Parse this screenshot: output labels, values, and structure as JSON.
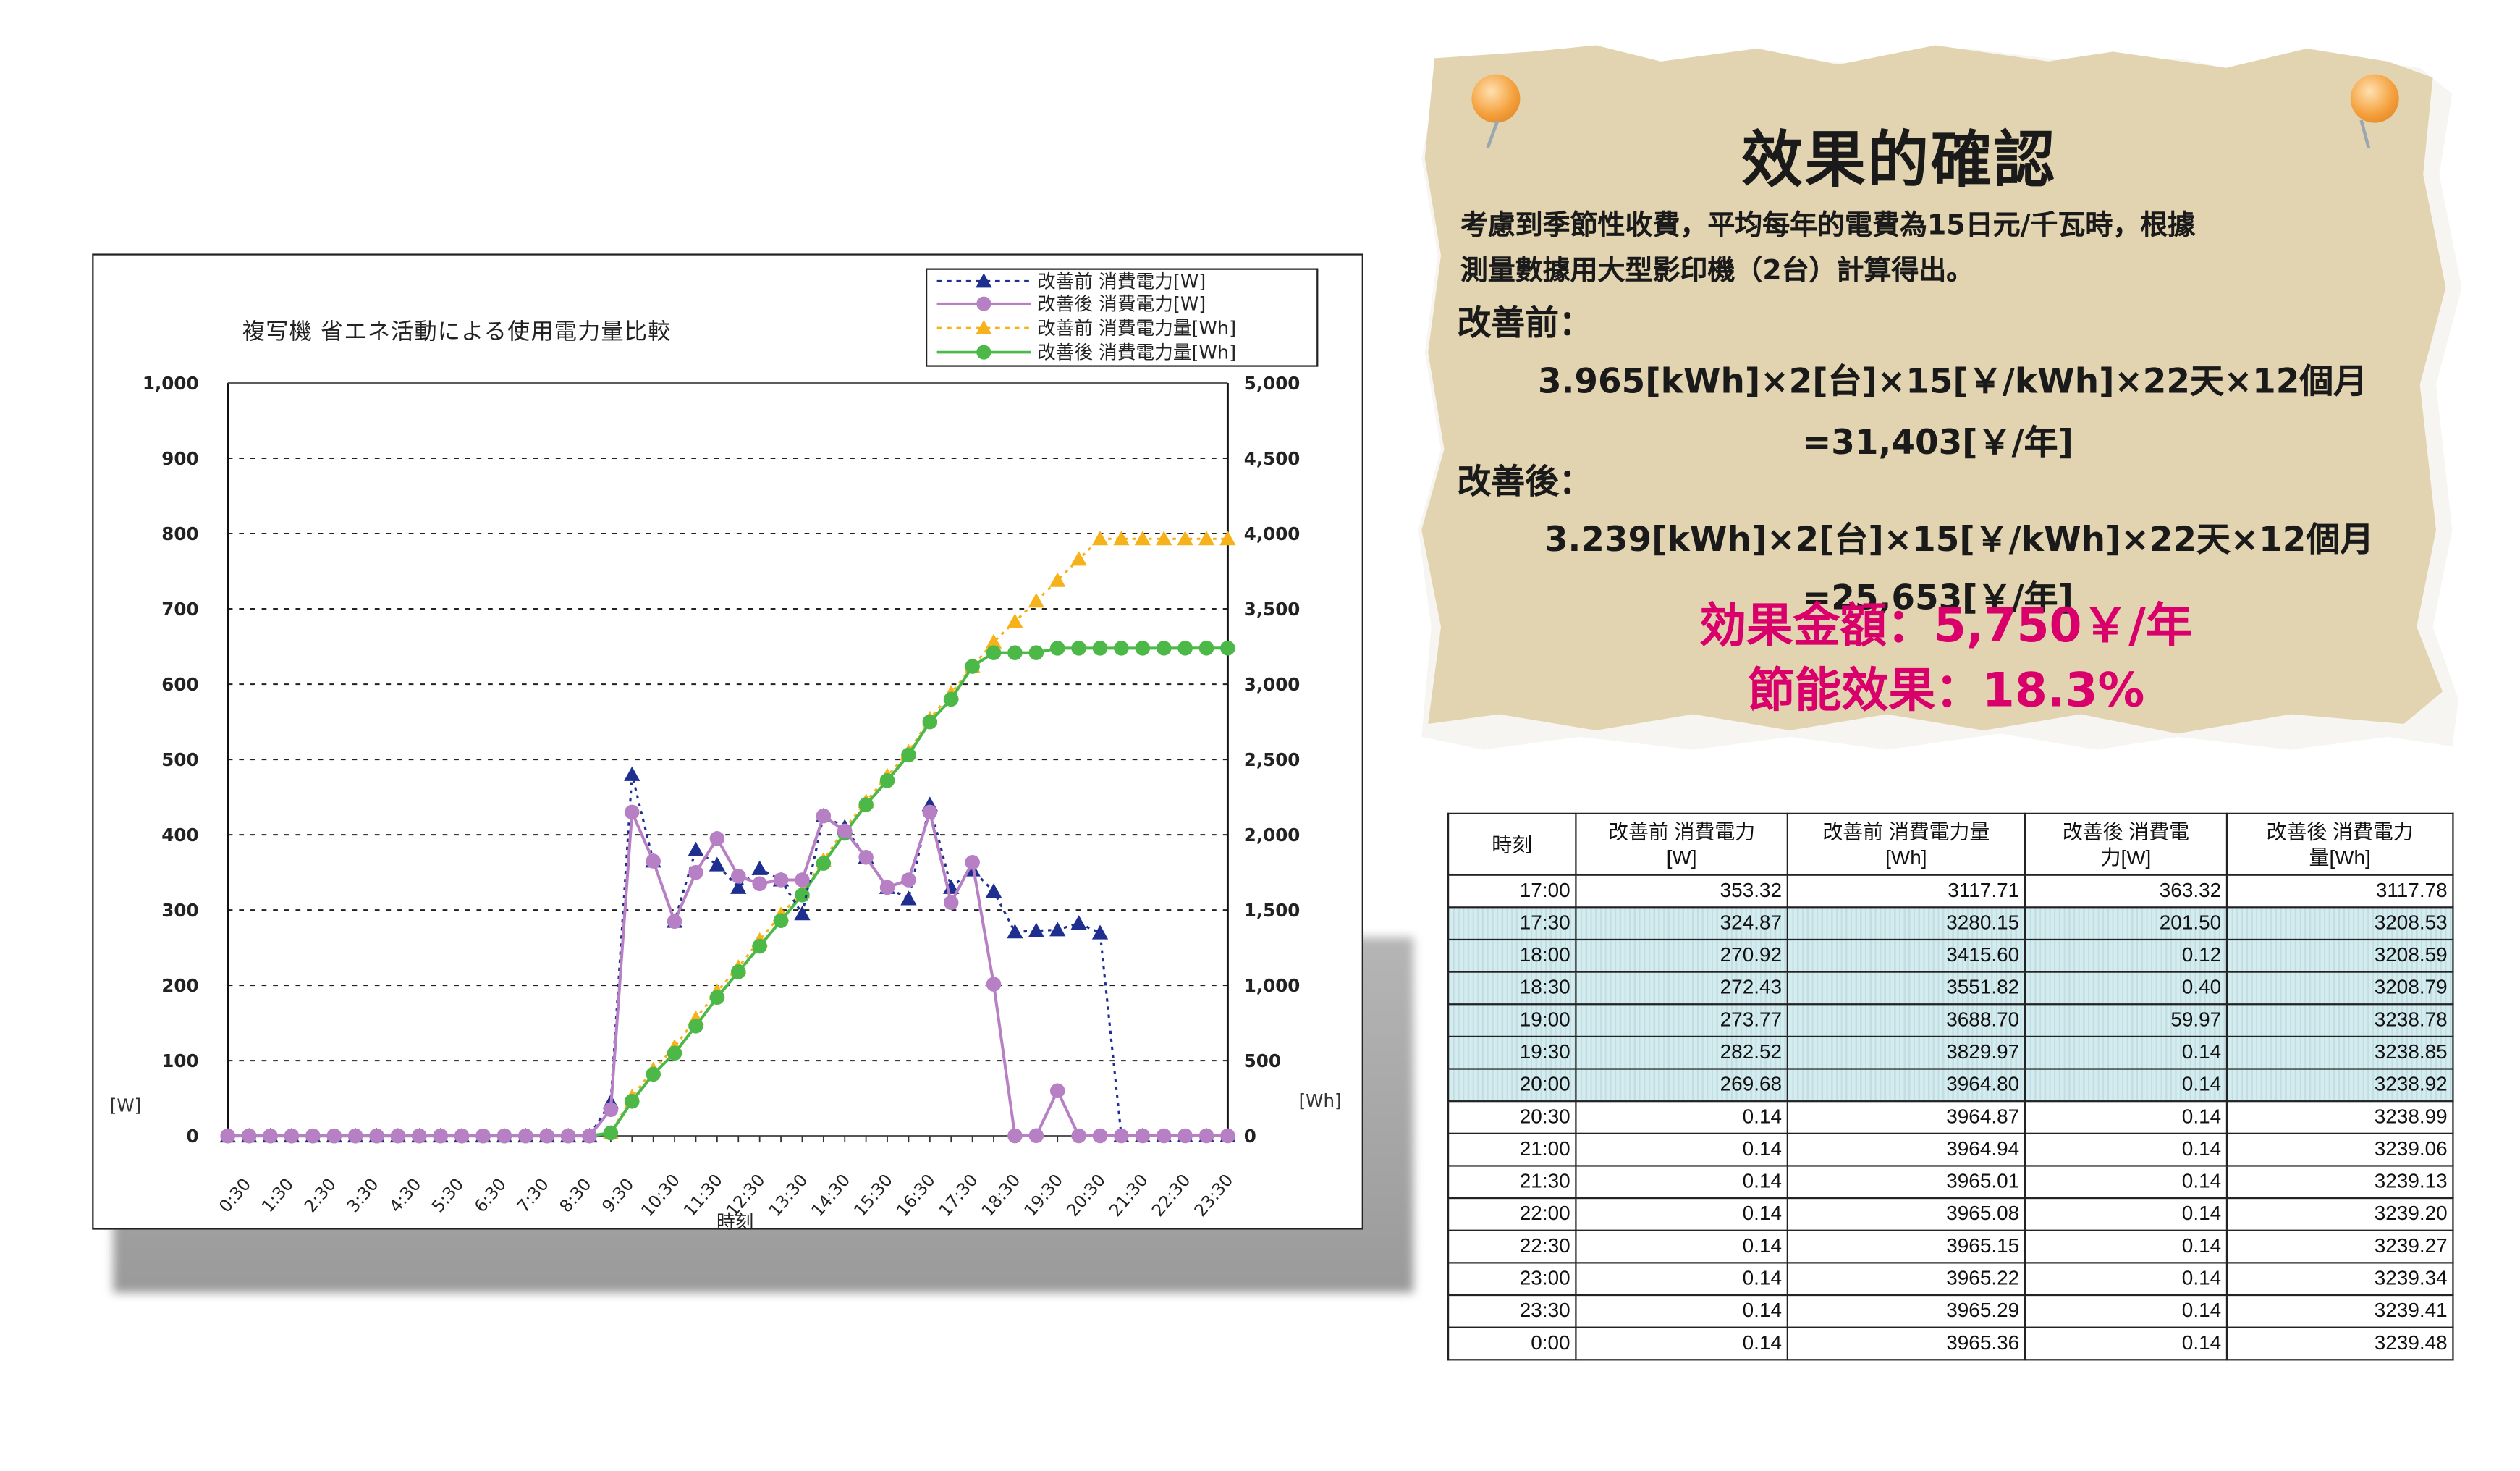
{
  "chart_data": {
    "type": "line",
    "title": "複写機 省エネ活動による使用電力量比較",
    "xlabel": "時刻",
    "ylabel_left": "[W]",
    "ylabel_right": "[Wh]",
    "ylim_left": [
      0,
      1000
    ],
    "ylim_right": [
      0,
      5000
    ],
    "yticks_left": [
      "0",
      "100",
      "200",
      "300",
      "400",
      "500",
      "600",
      "700",
      "800",
      "900",
      "1,000"
    ],
    "yticks_right": [
      "0",
      "500",
      "1,000",
      "1,500",
      "2,000",
      "2,500",
      "3,000",
      "3,500",
      "4,000",
      "4,500",
      "5,000"
    ],
    "xtick_labels": [
      "0:30",
      "1:30",
      "2:30",
      "3:30",
      "4:30",
      "5:30",
      "6:30",
      "7:30",
      "8:30",
      "9:30",
      "10:30",
      "11:30",
      "12:30",
      "13:30",
      "14:30",
      "15:30",
      "16:30",
      "17:30",
      "18:30",
      "19:30",
      "20:30",
      "21:30",
      "22:30",
      "23:30"
    ],
    "grid": "horizontal dashed",
    "legend_position": "top-right",
    "x": [
      "0:00",
      "0:30",
      "1:00",
      "1:30",
      "2:00",
      "2:30",
      "3:00",
      "3:30",
      "4:00",
      "4:30",
      "5:00",
      "5:30",
      "6:00",
      "6:30",
      "7:00",
      "7:30",
      "8:00",
      "8:30",
      "9:00",
      "9:30",
      "10:00",
      "10:30",
      "11:00",
      "11:30",
      "12:00",
      "12:30",
      "13:00",
      "13:30",
      "14:00",
      "14:30",
      "15:00",
      "15:30",
      "16:00",
      "16:30",
      "17:00",
      "17:30",
      "18:00",
      "18:30",
      "19:00",
      "19:30",
      "20:00",
      "20:30",
      "21:00",
      "21:30",
      "22:00",
      "22:30",
      "23:00",
      "23:30"
    ],
    "series": [
      {
        "name": "改善前 消費電力[W]",
        "axis": "left",
        "color": "#1f2f8f",
        "marker": "triangle",
        "line": "dotted",
        "values": [
          0,
          0,
          0,
          0,
          0,
          0,
          0,
          0,
          0,
          0,
          0,
          0,
          0,
          0,
          0,
          0,
          0,
          0,
          45,
          480,
          365,
          285,
          380,
          360,
          330,
          355,
          340,
          295,
          425,
          410,
          370,
          330,
          315,
          440,
          330,
          353.32,
          324.87,
          270.92,
          272.43,
          273.77,
          282.52,
          269.68,
          0.14,
          0.14,
          0.14,
          0.14,
          0.14,
          0.14
        ]
      },
      {
        "name": "改善後 消費電力[W]",
        "axis": "left",
        "color": "#b77fc4",
        "marker": "circle",
        "line": "solid",
        "values": [
          0,
          0,
          0,
          0,
          0,
          0,
          0,
          0,
          0,
          0,
          0,
          0,
          0,
          0,
          0,
          0,
          0,
          0,
          35,
          430,
          365,
          285,
          350,
          395,
          345,
          335,
          340,
          340,
          425,
          405,
          370,
          330,
          340,
          430,
          310,
          363.32,
          201.5,
          0.12,
          0.4,
          59.97,
          0.14,
          0.14,
          0.14,
          0.14,
          0.14,
          0.14,
          0.14,
          0.14
        ]
      },
      {
        "name": "改善前 消費電力量[Wh]",
        "axis": "right",
        "color": "#f6b21b",
        "marker": "triangle",
        "line": "dotted",
        "values": [
          0,
          0,
          0,
          0,
          0,
          0,
          0,
          0,
          0,
          0,
          0,
          0,
          0,
          0,
          0,
          0,
          0,
          0,
          20,
          260,
          440,
          590,
          780,
          960,
          1120,
          1300,
          1470,
          1620,
          1830,
          2040,
          2220,
          2390,
          2550,
          2770,
          2940,
          3117.71,
          3280.15,
          3415.6,
          3551.82,
          3688.7,
          3829.97,
          3964.8,
          3964.87,
          3964.94,
          3965.01,
          3965.08,
          3965.15,
          3965.22
        ]
      },
      {
        "name": "改善後 消費電力量[Wh]",
        "axis": "right",
        "color": "#4cb848",
        "marker": "circle",
        "line": "solid",
        "values": [
          0,
          0,
          0,
          0,
          0,
          0,
          0,
          0,
          0,
          0,
          0,
          0,
          0,
          0,
          0,
          0,
          0,
          0,
          20,
          230,
          410,
          550,
          730,
          920,
          1090,
          1260,
          1430,
          1600,
          1810,
          2010,
          2200,
          2360,
          2530,
          2750,
          2900,
          3117.78,
          3208.53,
          3208.59,
          3208.79,
          3238.78,
          3238.85,
          3238.92,
          3238.99,
          3239.06,
          3239.13,
          3239.2,
          3239.27,
          3239.34
        ]
      }
    ]
  },
  "legend": {
    "items": [
      "改善前 消費電力[W]",
      "改善後 消費電力[W]",
      "改善前 消費電力量[Wh]",
      "改善後 消費電力量[Wh]"
    ]
  },
  "note": {
    "title": "效果的確認",
    "intro_line1": "考慮到季節性收費，平均每年的電費為15日元/千瓦時，根據",
    "intro_line2": "測量數據用大型影印機（2台）計算得出。",
    "before_label": "改善前：",
    "before_formula": "3.965[kWh]×2[台]×15[￥/kWh]×22天×12個月",
    "before_result": "=31,403[￥/年]",
    "after_label": "改善後：",
    "after_formula": "3.239[kWh]×2[台]×15[￥/kWh]×22天×12個月",
    "after_result": "=25,653[￥/年]",
    "effect_amount": "効果金額：5,750￥/年",
    "saving_rate": "節能效果：18.3%",
    "result_color": "#d9006c"
  },
  "table": {
    "headers": [
      "時刻",
      "改善前 消費電力\n[W]",
      "改善前 消費電力量\n[Wh]",
      "改善後 消費電\n力[W]",
      "改善後 消費電力\n量[Wh]"
    ],
    "rows": [
      {
        "time": "17:00",
        "bw": "353.32",
        "bwh": "3117.71",
        "aw": "363.32",
        "awh": "3117.78",
        "hl": false
      },
      {
        "time": "17:30",
        "bw": "324.87",
        "bwh": "3280.15",
        "aw": "201.50",
        "awh": "3208.53",
        "hl": true
      },
      {
        "time": "18:00",
        "bw": "270.92",
        "bwh": "3415.60",
        "aw": "0.12",
        "awh": "3208.59",
        "hl": true
      },
      {
        "time": "18:30",
        "bw": "272.43",
        "bwh": "3551.82",
        "aw": "0.40",
        "awh": "3208.79",
        "hl": true
      },
      {
        "time": "19:00",
        "bw": "273.77",
        "bwh": "3688.70",
        "aw": "59.97",
        "awh": "3238.78",
        "hl": true
      },
      {
        "time": "19:30",
        "bw": "282.52",
        "bwh": "3829.97",
        "aw": "0.14",
        "awh": "3238.85",
        "hl": true
      },
      {
        "time": "20:00",
        "bw": "269.68",
        "bwh": "3964.80",
        "aw": "0.14",
        "awh": "3238.92",
        "hl": true
      },
      {
        "time": "20:30",
        "bw": "0.14",
        "bwh": "3964.87",
        "aw": "0.14",
        "awh": "3238.99",
        "hl": false
      },
      {
        "time": "21:00",
        "bw": "0.14",
        "bwh": "3964.94",
        "aw": "0.14",
        "awh": "3239.06",
        "hl": false
      },
      {
        "time": "21:30",
        "bw": "0.14",
        "bwh": "3965.01",
        "aw": "0.14",
        "awh": "3239.13",
        "hl": false
      },
      {
        "time": "22:00",
        "bw": "0.14",
        "bwh": "3965.08",
        "aw": "0.14",
        "awh": "3239.20",
        "hl": false
      },
      {
        "time": "22:30",
        "bw": "0.14",
        "bwh": "3965.15",
        "aw": "0.14",
        "awh": "3239.27",
        "hl": false
      },
      {
        "time": "23:00",
        "bw": "0.14",
        "bwh": "3965.22",
        "aw": "0.14",
        "awh": "3239.34",
        "hl": false
      },
      {
        "time": "23:30",
        "bw": "0.14",
        "bwh": "3965.29",
        "aw": "0.14",
        "awh": "3239.41",
        "hl": false
      },
      {
        "time": "0:00",
        "bw": "0.14",
        "bwh": "3965.36",
        "aw": "0.14",
        "awh": "3239.48",
        "hl": false
      }
    ]
  }
}
